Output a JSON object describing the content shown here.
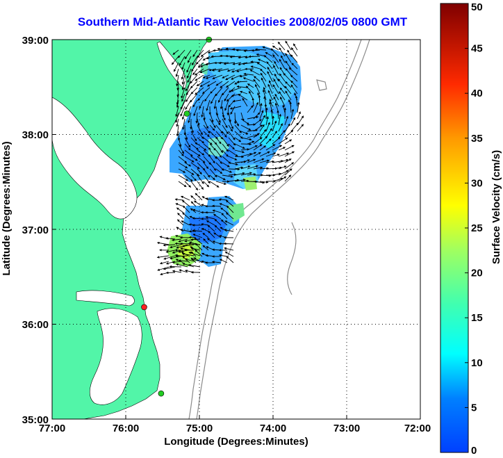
{
  "title": "Southern Mid-Atlantic Raw Velocities 2008/02/05 0800 GMT",
  "x_axis": {
    "label": "Longitude (Degrees:Minutes)",
    "ticks": [
      "77:00",
      "76:00",
      "75:00",
      "74:00",
      "73:00",
      "72:00"
    ]
  },
  "y_axis": {
    "label": "Latitude (Degrees:Minutes)",
    "ticks": [
      "39:00",
      "38:00",
      "37:00",
      "36:00",
      "35:00"
    ]
  },
  "colorbar": {
    "label": "Surface Velocity (cm/s)",
    "ticks": [
      "50",
      "45",
      "40",
      "35",
      "30",
      "25",
      "20",
      "15",
      "10",
      "5",
      "0"
    ],
    "min": 0,
    "max": 50,
    "colormap": "jet"
  },
  "map_extent": {
    "lon": [
      -77,
      -72
    ],
    "lat": [
      35,
      39
    ]
  },
  "colors": {
    "land": "#52f5a8",
    "water": "#ffffff",
    "isobath": "#8a8a8a",
    "grid": "#000000",
    "title": "#0000ff",
    "station_active": "#22cc22",
    "station_alert": "#ff2222"
  },
  "stations": [
    {
      "lon": -74.87,
      "lat": 39.0,
      "status": "active"
    },
    {
      "lon": -75.17,
      "lat": 38.22,
      "status": "active"
    },
    {
      "lon": -75.75,
      "lat": 36.18,
      "status": "alert"
    },
    {
      "lon": -75.52,
      "lat": 35.27,
      "status": "active"
    }
  ]
}
